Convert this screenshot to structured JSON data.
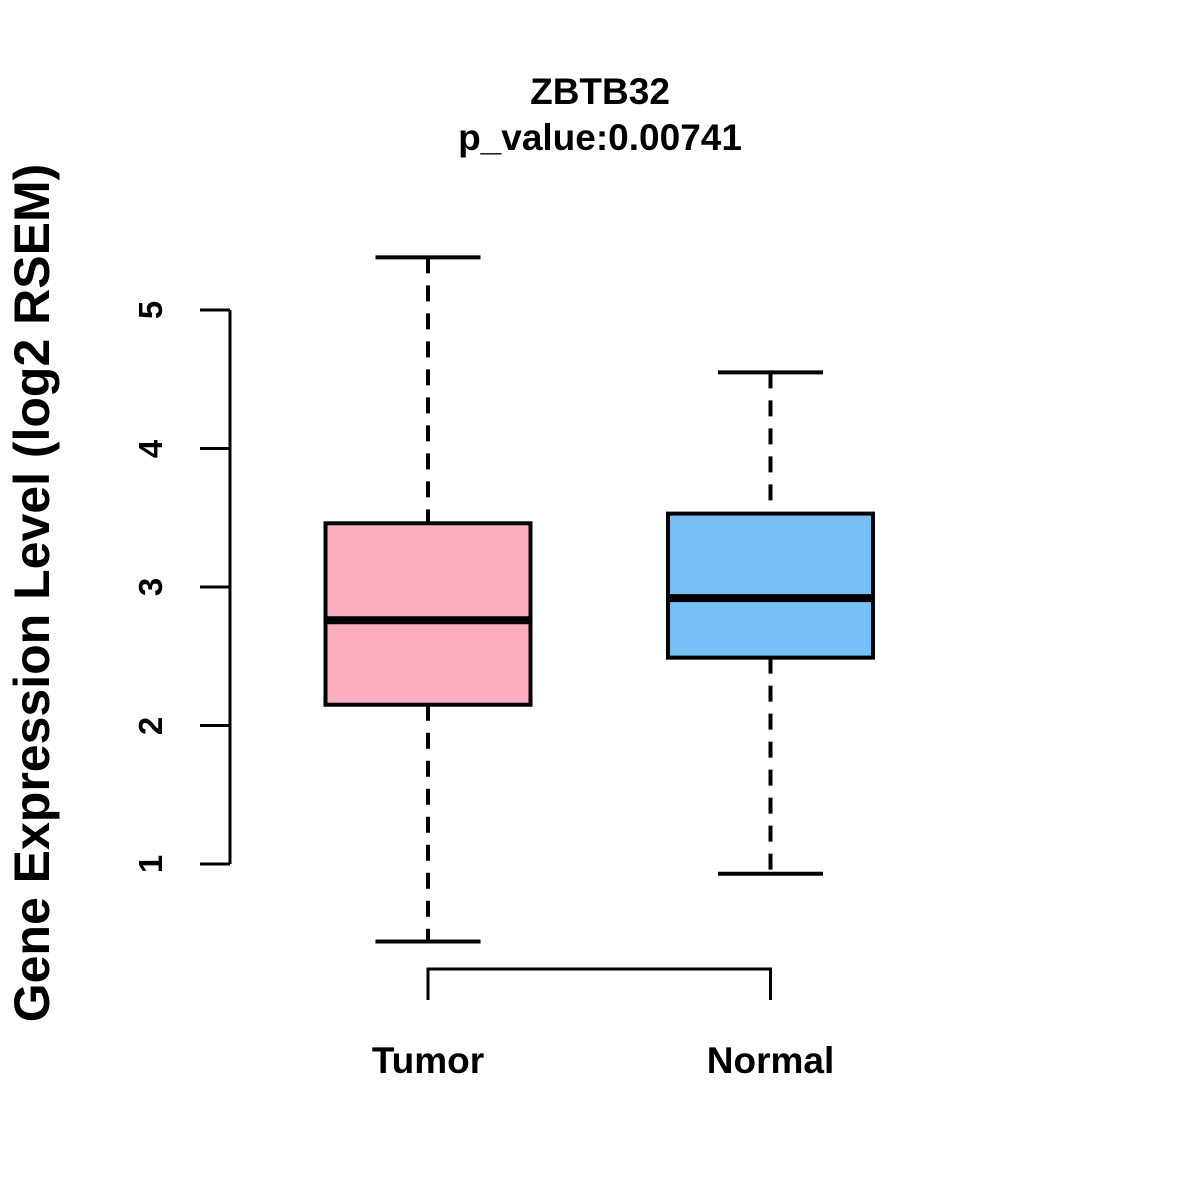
{
  "title": {
    "line1": "ZBTB32",
    "line2": "p_value:0.00741"
  },
  "y_axis": {
    "label": "Gene Expression Level (log2 RSEM)",
    "tick_labels": [
      "1",
      "2",
      "3",
      "4",
      "5"
    ]
  },
  "x_axis": {
    "categories": [
      "Tumor",
      "Normal"
    ]
  },
  "colors": {
    "tumor_fill": "#FCAEC1",
    "normal_fill": "#76BFF7",
    "stroke": "#000000",
    "background": "#FFFFFF"
  },
  "chart_data": {
    "type": "boxplot",
    "title": "ZBTB32",
    "subtitle": "p_value:0.00741",
    "xlabel": "",
    "ylabel": "Gene Expression Level (log2 RSEM)",
    "categories": [
      "Tumor",
      "Normal"
    ],
    "yticks": [
      1,
      2,
      3,
      4,
      5
    ],
    "ylim": [
      0.3,
      5.5
    ],
    "grid": false,
    "legend": "none",
    "series": [
      {
        "name": "Tumor",
        "box_color": "#FCAEC1",
        "whisker_low": 0.44,
        "q1": 2.15,
        "median": 2.76,
        "q3": 3.46,
        "whisker_high": 5.38
      },
      {
        "name": "Normal",
        "box_color": "#76BFF7",
        "whisker_low": 0.93,
        "q1": 2.49,
        "median": 2.92,
        "q3": 3.53,
        "whisker_high": 4.55
      }
    ]
  }
}
